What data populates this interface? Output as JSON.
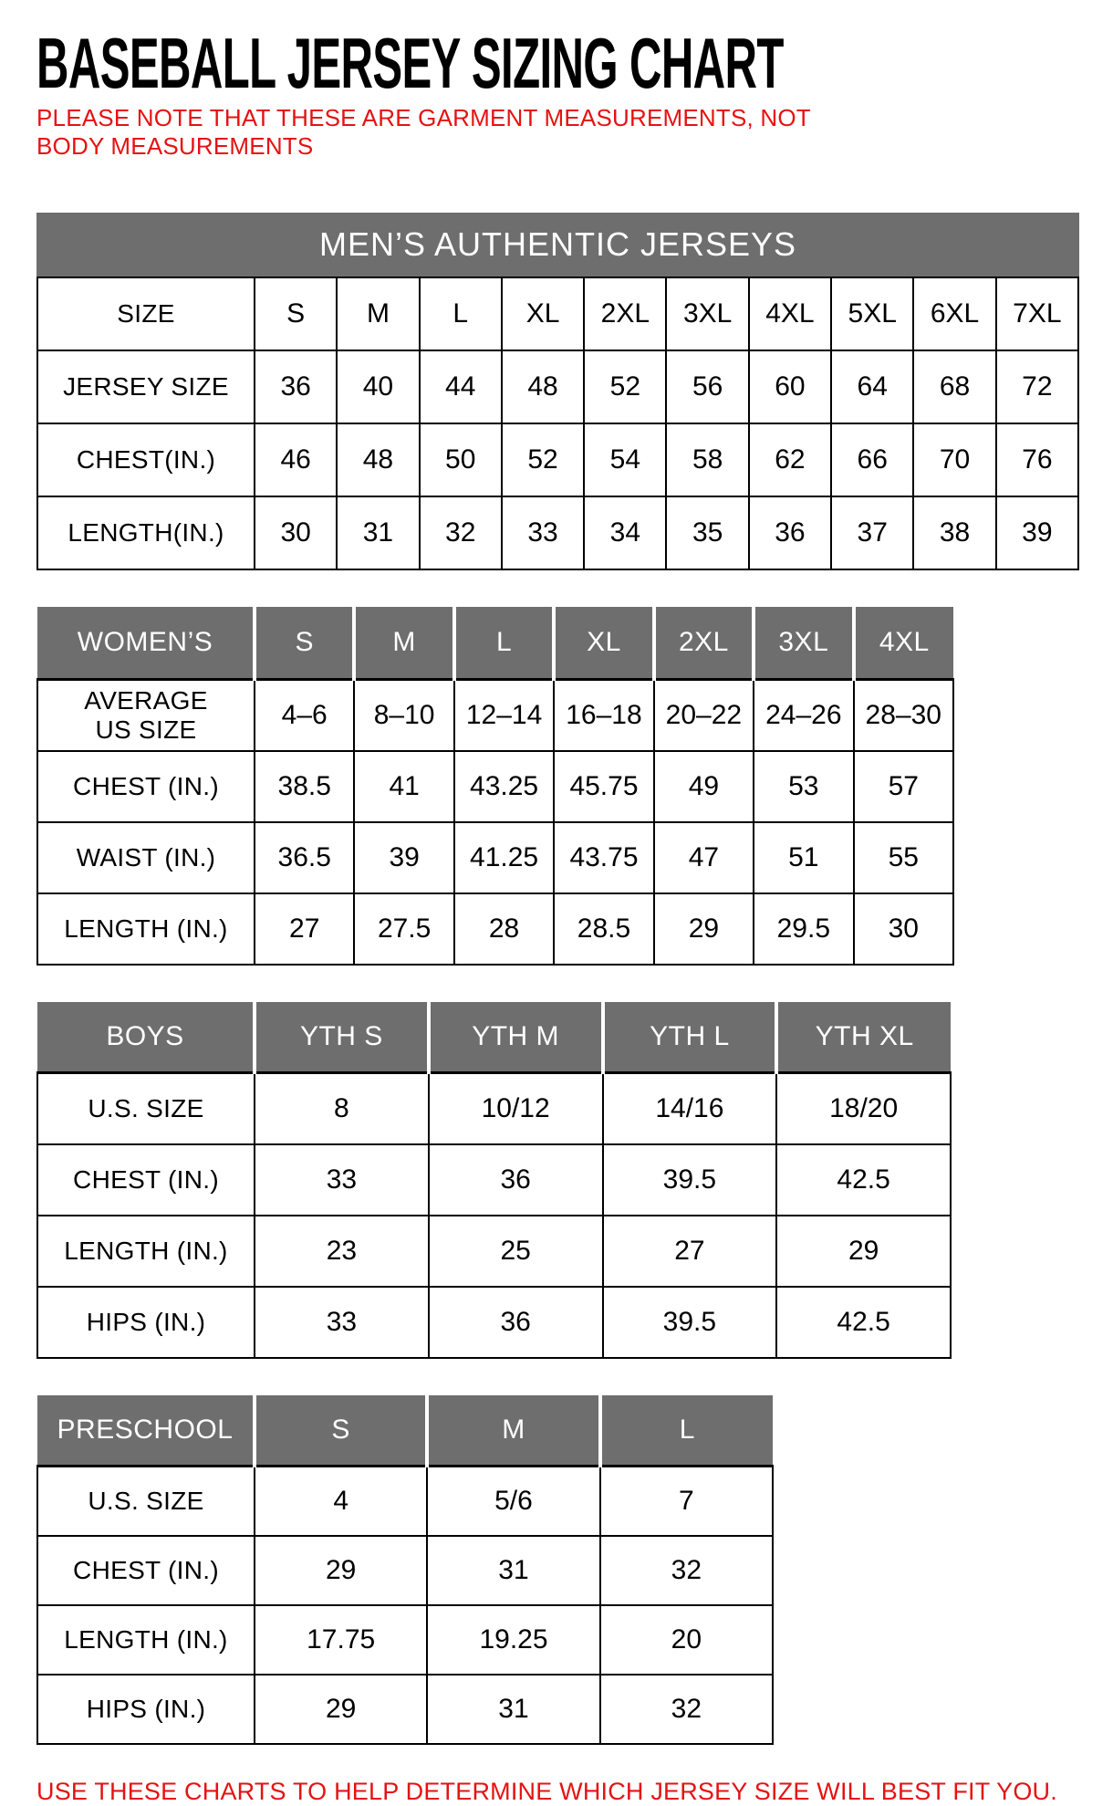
{
  "page": {
    "title": "BASEBALL JERSEY SIZING CHART",
    "note": "PLEASE NOTE THAT THESE ARE GARMENT MEASUREMENTS, NOT BODY MEASUREMENTS",
    "footer": "USE THESE CHARTS TO HELP DETERMINE WHICH JERSEY SIZE WILL BEST FIT YOU."
  },
  "colors": {
    "header_gray": "#6e6e6e",
    "accent_red": "#e51212",
    "text_black": "#000000",
    "header_text_white": "#ffffff"
  },
  "tables": {
    "men": {
      "banner": "MEN’S AUTHENTIC JERSEYS",
      "header_row": [
        "SIZE",
        "S",
        "M",
        "L",
        "XL",
        "2XL",
        "3XL",
        "4XL",
        "5XL",
        "6XL",
        "7XL"
      ],
      "rows": [
        [
          "JERSEY SIZE",
          "36",
          "40",
          "44",
          "48",
          "52",
          "56",
          "60",
          "64",
          "68",
          "72"
        ],
        [
          "CHEST(IN.)",
          "46",
          "48",
          "50",
          "52",
          "54",
          "58",
          "62",
          "66",
          "70",
          "76"
        ],
        [
          "LENGTH(IN.)",
          "30",
          "31",
          "32",
          "33",
          "34",
          "35",
          "36",
          "37",
          "38",
          "39"
        ]
      ]
    },
    "women": {
      "header_row": [
        "WOMEN’S",
        "S",
        "M",
        "L",
        "XL",
        "2XL",
        "3XL",
        "4XL"
      ],
      "rows": [
        [
          "AVERAGE\nUS SIZE",
          "4–6",
          "8–10",
          "12–14",
          "16–18",
          "20–22",
          "24–26",
          "28–30"
        ],
        [
          "CHEST (IN.)",
          "38.5",
          "41",
          "43.25",
          "45.75",
          "49",
          "53",
          "57"
        ],
        [
          "WAIST (IN.)",
          "36.5",
          "39",
          "41.25",
          "43.75",
          "47",
          "51",
          "55"
        ],
        [
          "LENGTH (IN.)",
          "27",
          "27.5",
          "28",
          "28.5",
          "29",
          "29.5",
          "30"
        ]
      ]
    },
    "boys": {
      "header_row": [
        "BOYS",
        "YTH S",
        "YTH M",
        "YTH L",
        "YTH XL"
      ],
      "rows": [
        [
          "U.S. SIZE",
          "8",
          "10/12",
          "14/16",
          "18/20"
        ],
        [
          "CHEST (IN.)",
          "33",
          "36",
          "39.5",
          "42.5"
        ],
        [
          "LENGTH (IN.)",
          "23",
          "25",
          "27",
          "29"
        ],
        [
          "HIPS (IN.)",
          "33",
          "36",
          "39.5",
          "42.5"
        ]
      ]
    },
    "preschool": {
      "header_row": [
        "PRESCHOOL",
        "S",
        "M",
        "L"
      ],
      "rows": [
        [
          "U.S. SIZE",
          "4",
          "5/6",
          "7"
        ],
        [
          "CHEST (IN.)",
          "29",
          "31",
          "32"
        ],
        [
          "LENGTH (IN.)",
          "17.75",
          "19.25",
          "20"
        ],
        [
          "HIPS (IN.)",
          "29",
          "31",
          "32"
        ]
      ]
    }
  }
}
